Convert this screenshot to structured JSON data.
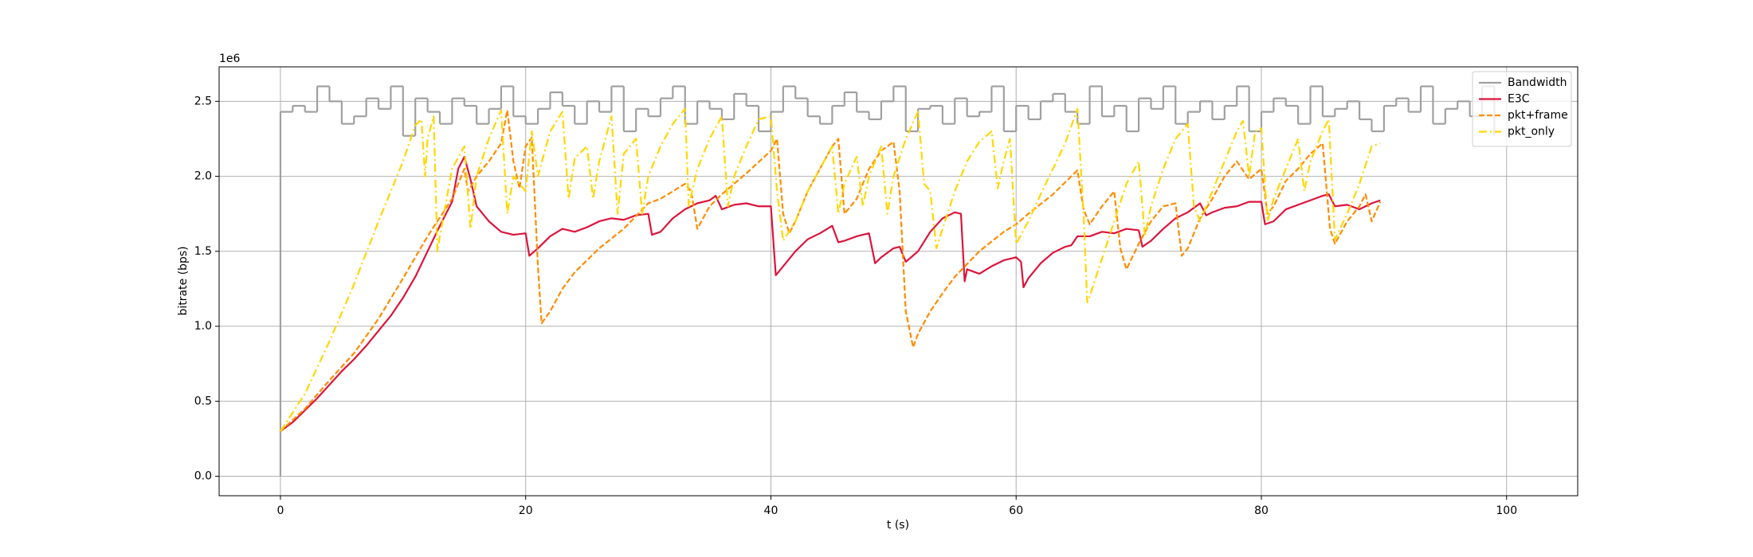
{
  "chart_data": {
    "type": "line",
    "xlabel": "t (s)",
    "ylabel": "bitrate (bps)",
    "y_offset_label": "1e6",
    "xlim": [
      -5,
      105.8
    ],
    "ylim": [
      -0.13,
      2.73
    ],
    "xticks": [
      0,
      20,
      40,
      60,
      80,
      100
    ],
    "yticks": [
      {
        "value": 0,
        "label": "0.0"
      },
      0.5,
      {
        "value": 1,
        "label": "1.0"
      },
      1.5,
      {
        "value": 2,
        "label": "2.0"
      },
      2.5
    ],
    "grid": true,
    "legend": "upper right",
    "series": [
      {
        "name": "Bandwidth",
        "color": "#a0a0a0",
        "style": "steps",
        "x": [
          0,
          0,
          1,
          2,
          3,
          4,
          5,
          6,
          7,
          8,
          9,
          10,
          11,
          12,
          13,
          14,
          15,
          16,
          17,
          18,
          19,
          20,
          21,
          22,
          23,
          24,
          25,
          26,
          27,
          28,
          29,
          30,
          31,
          32,
          33,
          34,
          35,
          36,
          37,
          38,
          39,
          40,
          41,
          42,
          43,
          44,
          45,
          46,
          47,
          48,
          49,
          50,
          51,
          52,
          53,
          54,
          55,
          56,
          57,
          58,
          59,
          60,
          61,
          62,
          63,
          64,
          65,
          66,
          67,
          68,
          69,
          70,
          71,
          72,
          73,
          74,
          75,
          76,
          77,
          78,
          79,
          80,
          81,
          82,
          83,
          84,
          85,
          86,
          87,
          88,
          89,
          90,
          91,
          92,
          93,
          94,
          95,
          96,
          97,
          98,
          99
        ],
        "values": [
          0,
          2.43,
          2.47,
          2.43,
          2.6,
          2.5,
          2.35,
          2.4,
          2.52,
          2.45,
          2.6,
          2.27,
          2.52,
          2.43,
          2.35,
          2.52,
          2.47,
          2.35,
          2.45,
          2.6,
          2.4,
          2.35,
          2.45,
          2.56,
          2.47,
          2.35,
          2.5,
          2.43,
          2.6,
          2.3,
          2.45,
          2.4,
          2.52,
          2.6,
          2.35,
          2.5,
          2.45,
          2.38,
          2.55,
          2.47,
          2.3,
          2.43,
          2.6,
          2.52,
          2.4,
          2.35,
          2.47,
          2.56,
          2.43,
          2.38,
          2.5,
          2.6,
          2.3,
          2.45,
          2.47,
          2.35,
          2.52,
          2.4,
          2.43,
          2.6,
          2.3,
          2.47,
          2.38,
          2.5,
          2.55,
          2.43,
          2.35,
          2.6,
          2.4,
          2.47,
          2.3,
          2.52,
          2.45,
          2.6,
          2.35,
          2.43,
          2.5,
          2.38,
          2.47,
          2.6,
          2.3,
          2.43,
          2.52,
          2.47,
          2.35,
          2.6,
          2.4,
          2.45,
          2.5,
          2.38,
          2.3,
          2.47,
          2.52,
          2.43,
          2.6,
          2.35,
          2.45,
          2.5,
          2.4,
          2.6,
          2.27
        ]
      },
      {
        "name": "E3C",
        "color": "#dc143c",
        "style": "solid",
        "x": [
          0,
          1,
          2,
          3,
          4,
          5,
          6,
          7,
          8,
          9,
          10,
          11,
          12,
          13,
          14,
          14.5,
          15,
          15.5,
          16,
          17,
          18,
          19,
          20,
          20.3,
          21,
          22,
          23,
          24,
          25,
          26,
          27,
          28,
          29,
          30,
          30.3,
          31,
          32,
          33,
          34,
          35,
          35.5,
          36,
          37,
          38,
          39,
          40,
          40.4,
          41,
          42,
          43,
          44,
          45,
          45.5,
          46,
          47,
          48,
          48.5,
          49,
          50,
          50.5,
          51,
          52,
          53,
          54,
          55,
          55.5,
          55.8,
          56,
          57,
          58,
          59,
          60,
          60.4,
          60.6,
          61,
          62,
          63,
          64,
          64.5,
          65,
          66,
          67,
          68,
          69,
          70,
          70.3,
          71,
          72,
          73,
          74,
          75,
          75.5,
          76,
          77,
          78,
          79,
          80,
          80.3,
          81,
          82,
          83,
          84,
          85,
          85.5,
          86,
          87,
          88,
          89,
          89.7
        ],
        "values": [
          0.3,
          0.36,
          0.44,
          0.52,
          0.61,
          0.7,
          0.78,
          0.87,
          0.97,
          1.07,
          1.19,
          1.33,
          1.5,
          1.67,
          1.83,
          2.05,
          2.13,
          1.98,
          1.8,
          1.7,
          1.63,
          1.61,
          1.62,
          1.47,
          1.52,
          1.6,
          1.65,
          1.63,
          1.66,
          1.7,
          1.72,
          1.71,
          1.74,
          1.75,
          1.61,
          1.63,
          1.72,
          1.78,
          1.82,
          1.84,
          1.87,
          1.78,
          1.81,
          1.82,
          1.8,
          1.8,
          1.34,
          1.4,
          1.5,
          1.58,
          1.62,
          1.67,
          1.56,
          1.57,
          1.6,
          1.62,
          1.42,
          1.46,
          1.52,
          1.53,
          1.43,
          1.5,
          1.63,
          1.72,
          1.76,
          1.75,
          1.3,
          1.38,
          1.35,
          1.4,
          1.44,
          1.46,
          1.43,
          1.26,
          1.32,
          1.42,
          1.49,
          1.53,
          1.54,
          1.6,
          1.6,
          1.63,
          1.62,
          1.65,
          1.64,
          1.53,
          1.57,
          1.65,
          1.72,
          1.76,
          1.82,
          1.74,
          1.76,
          1.79,
          1.8,
          1.83,
          1.83,
          1.68,
          1.7,
          1.78,
          1.81,
          1.84,
          1.87,
          1.88,
          1.8,
          1.81,
          1.78,
          1.82,
          1.84
        ]
      },
      {
        "name": "pkt+frame",
        "color": "#ff8c00",
        "style": "dashed",
        "x": [
          0,
          2,
          4,
          6,
          8,
          10,
          12,
          14,
          15,
          15.3,
          16,
          17,
          18,
          18.5,
          19,
          19.5,
          20,
          20.5,
          21,
          21.3,
          22,
          23,
          24,
          26,
          28,
          30,
          31,
          32,
          33,
          33.5,
          34,
          35,
          36,
          38,
          40,
          40.5,
          41,
          41.5,
          42,
          43,
          44,
          45,
          45.5,
          46,
          47,
          48,
          49,
          50,
          50.5,
          51,
          51.6,
          52,
          53,
          54,
          55,
          57,
          59,
          60,
          61,
          63,
          65,
          65.5,
          66,
          67,
          68,
          68.5,
          69,
          70,
          71,
          72,
          73,
          73.5,
          74,
          75,
          76,
          77,
          78,
          79,
          80,
          80.5,
          81,
          82,
          83,
          84,
          85,
          85.6,
          86,
          87,
          88,
          88.5,
          89,
          89.7
        ],
        "values": [
          0.3,
          0.45,
          0.64,
          0.82,
          1.05,
          1.32,
          1.6,
          1.85,
          2.05,
          1.9,
          2.0,
          2.1,
          2.22,
          2.44,
          2.1,
          1.92,
          2.2,
          2.26,
          1.4,
          1.02,
          1.1,
          1.25,
          1.36,
          1.52,
          1.65,
          1.82,
          1.85,
          1.9,
          1.95,
          1.9,
          1.65,
          1.8,
          1.88,
          2.02,
          2.17,
          2.25,
          1.75,
          1.62,
          1.7,
          1.9,
          2.05,
          2.2,
          2.25,
          1.75,
          1.85,
          2.05,
          2.17,
          2.23,
          1.9,
          1.1,
          0.86,
          0.95,
          1.1,
          1.22,
          1.33,
          1.5,
          1.63,
          1.68,
          1.75,
          1.88,
          2.04,
          1.78,
          1.68,
          1.8,
          1.9,
          1.52,
          1.38,
          1.55,
          1.7,
          1.8,
          1.82,
          1.47,
          1.52,
          1.72,
          1.85,
          2.0,
          2.1,
          1.98,
          2.05,
          1.75,
          1.8,
          1.97,
          2.05,
          2.15,
          2.22,
          1.65,
          1.55,
          1.7,
          1.8,
          1.88,
          1.7,
          1.83
        ]
      },
      {
        "name": "pkt_only",
        "color": "#ffd700",
        "style": "dashdot",
        "x": [
          0,
          2,
          4,
          6,
          8,
          10,
          11,
          11.5,
          11.8,
          12,
          12.5,
          12.8,
          13,
          14,
          15,
          15.5,
          16,
          17,
          18,
          18.5,
          19,
          20,
          20.5,
          21,
          22,
          23,
          23.5,
          24,
          25,
          25.5,
          26,
          27,
          27.5,
          28,
          29,
          29.5,
          30,
          31,
          32,
          33,
          33.3,
          34,
          35,
          36,
          36.5,
          37,
          38,
          39,
          40,
          40.5,
          41,
          42,
          43,
          44,
          45,
          45.5,
          46,
          47,
          47.5,
          48,
          49,
          49.5,
          50,
          51,
          52,
          52.5,
          53,
          53.5,
          54,
          55,
          56,
          57,
          58,
          58.5,
          59,
          59.5,
          60,
          61,
          62,
          63,
          64,
          65,
          65.5,
          65.8,
          66,
          67,
          68,
          69,
          70,
          70.5,
          71,
          72,
          73,
          74,
          74.5,
          75,
          76,
          77,
          78,
          78.5,
          79,
          79.5,
          80,
          80.5,
          81,
          82,
          83,
          83.5,
          84,
          85,
          85.5,
          86,
          87,
          88,
          89,
          89.7
        ],
        "values": [
          0.3,
          0.55,
          0.9,
          1.28,
          1.7,
          2.1,
          2.34,
          2.38,
          2.0,
          2.25,
          2.4,
          1.5,
          1.6,
          2.05,
          2.2,
          1.65,
          2.0,
          2.25,
          2.44,
          1.75,
          2.0,
          1.9,
          2.3,
          2.0,
          2.3,
          2.43,
          1.85,
          2.12,
          2.2,
          1.85,
          2.1,
          2.4,
          1.75,
          2.15,
          2.25,
          1.75,
          2.0,
          2.2,
          2.35,
          2.45,
          1.8,
          2.05,
          2.25,
          2.4,
          1.8,
          2.0,
          2.2,
          2.38,
          2.4,
          1.9,
          1.57,
          1.7,
          1.9,
          2.05,
          2.2,
          1.75,
          1.95,
          2.13,
          1.8,
          2.0,
          2.2,
          1.75,
          2.0,
          2.25,
          2.43,
          1.95,
          1.9,
          1.52,
          1.65,
          1.9,
          2.1,
          2.23,
          2.3,
          1.92,
          2.1,
          2.25,
          1.55,
          1.7,
          1.88,
          2.05,
          2.22,
          2.45,
          1.75,
          1.16,
          1.2,
          1.45,
          1.7,
          1.95,
          2.1,
          1.6,
          1.8,
          2.05,
          2.25,
          2.35,
          1.8,
          1.7,
          1.9,
          2.1,
          2.3,
          2.37,
          2.0,
          2.3,
          2.32,
          1.7,
          1.85,
          2.05,
          2.25,
          1.9,
          2.1,
          2.3,
          2.38,
          1.58,
          1.75,
          1.95,
          2.2,
          2.22
        ]
      }
    ]
  }
}
